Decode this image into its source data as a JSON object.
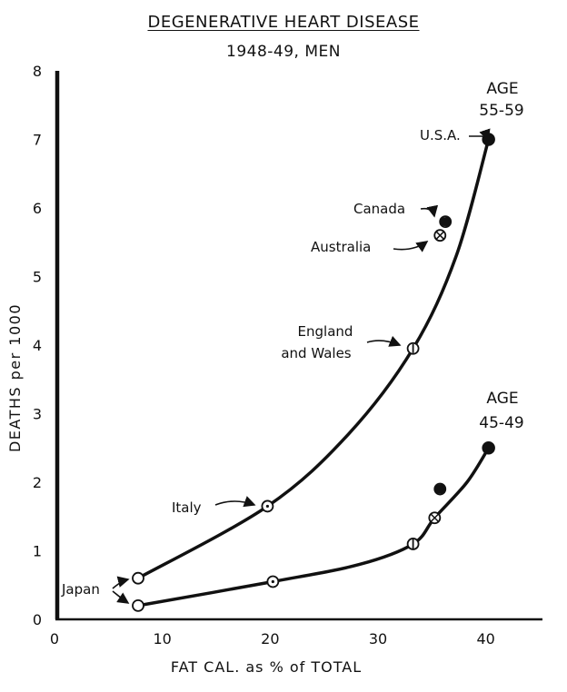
{
  "chart_data": {
    "type": "line",
    "title": "DEGENERATIVE HEART DISEASE",
    "subtitle": "1948-49, MEN",
    "xlabel": "FAT CAL. as % of TOTAL",
    "ylabel": "DEATHS per 1000",
    "xlim": [
      0,
      45
    ],
    "ylim": [
      0,
      8
    ],
    "x_ticks": [
      0,
      10,
      20,
      30,
      40
    ],
    "y_ticks": [
      0,
      1,
      2,
      3,
      4,
      5,
      6,
      7,
      8
    ],
    "grid": false,
    "series": [
      {
        "name": "AGE 55-59",
        "points": [
          {
            "country": "Japan",
            "x": 7.5,
            "y": 0.6
          },
          {
            "country": "Italy",
            "x": 19.5,
            "y": 1.65
          },
          {
            "country": "England and Wales",
            "x": 33,
            "y": 3.95
          },
          {
            "country": "Australia",
            "x": 35.5,
            "y": 5.6
          },
          {
            "country": "Canada",
            "x": 36,
            "y": 5.8
          },
          {
            "country": "U.S.A.",
            "x": 40,
            "y": 7.0
          }
        ]
      },
      {
        "name": "AGE 45-49",
        "points": [
          {
            "country": "Japan",
            "x": 7.5,
            "y": 0.2
          },
          {
            "country": "Italy",
            "x": 20,
            "y": 0.55
          },
          {
            "country": "England and Wales",
            "x": 33,
            "y": 1.1
          },
          {
            "country": "Australia",
            "x": 35,
            "y": 1.48
          },
          {
            "country": "Canada",
            "x": 35.5,
            "y": 1.9
          },
          {
            "country": "U.S.A.",
            "x": 40,
            "y": 2.5
          }
        ]
      }
    ],
    "age_labels": [
      {
        "lines": [
          "AGE",
          "55-59"
        ],
        "series": 0
      },
      {
        "lines": [
          "AGE",
          "45-49"
        ],
        "series": 1
      }
    ],
    "annotations": {
      "usa": "U.S.A.",
      "canada": "Canada",
      "australia": "Australia",
      "england": [
        "England",
        "and Wales"
      ],
      "italy": "Italy",
      "japan": "Japan"
    }
  }
}
